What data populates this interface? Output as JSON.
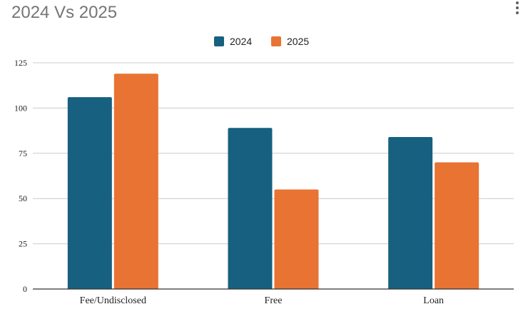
{
  "chart_data": {
    "type": "bar",
    "title": "2024 Vs 2025",
    "categories": [
      "Fee/Undisclosed",
      "Free",
      "Loan"
    ],
    "series": [
      {
        "name": "2024",
        "color": "#17607f",
        "values": [
          106,
          89,
          84
        ]
      },
      {
        "name": "2025",
        "color": "#e87333",
        "values": [
          119,
          55,
          70
        ]
      }
    ],
    "xlabel": "",
    "ylabel": "",
    "ylim": [
      0,
      125
    ],
    "yticks": [
      0,
      25,
      50,
      75,
      100,
      125
    ],
    "grid": true,
    "legend": "top-center"
  },
  "menu_icon": "more-vert-icon"
}
